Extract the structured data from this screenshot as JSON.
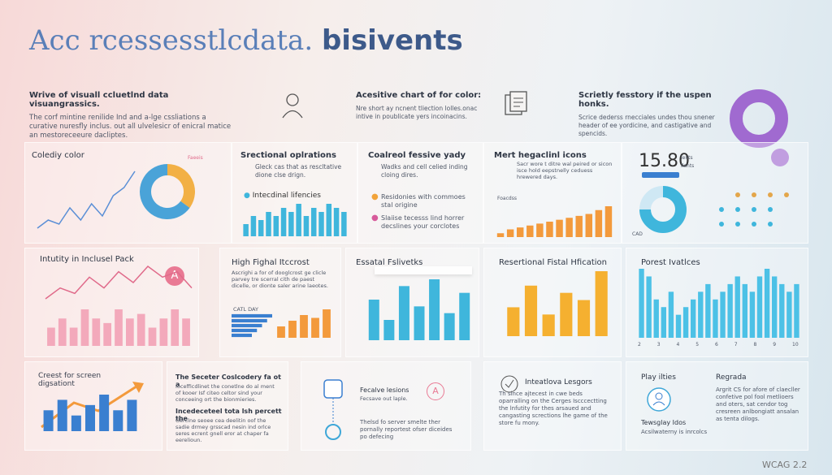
{
  "header": {
    "title_light": "Acc rcessesstlcdata.",
    "title_bold": "bisivents"
  },
  "intro": [
    {
      "title": "Wrive of visuall ccluetlnd data visuangrassics.",
      "text": "The corf mintine renilide Ind and a-lge cssliations a curative nuresfly inclus. out all ulvelesicr of enicral matice an mestoreceeure dacliptes."
    },
    {
      "title": "Acesitive chart of for color:",
      "text": "Nre short ay ncnent tliection lolles.onac intive in poublicate yers incoinacins."
    },
    {
      "title": "Scrietly fesstory if the uspen honks.",
      "text": "Scrice dederss rnecciales undes thou snener header of ee yordicine, and castigative and spencids."
    }
  ],
  "panels": [
    {
      "title": "Colediy color",
      "label": "Faeeis",
      "chart": {
        "type": "line",
        "color": "#5b8fd6",
        "values": [
          2,
          3,
          2.5,
          4.5,
          3,
          5,
          3.5,
          6,
          7,
          9
        ]
      },
      "donut": {
        "type": "donut",
        "colors": [
          "#f2b045",
          "#4aa3d8"
        ],
        "values": [
          35,
          65
        ]
      }
    },
    {
      "title": "Srectional oplrations",
      "text": "Gleck cas that as rescltative dione clse drign.",
      "legend": "Intecdinal lifencies",
      "chart": {
        "type": "bar",
        "color": "#3fb6dc",
        "values": [
          3,
          5,
          4,
          6,
          5,
          7,
          6,
          8,
          5,
          7,
          6,
          8,
          7,
          6
        ]
      }
    },
    {
      "title": "Coalreol fessive yady",
      "text": "Wadks and cell celied inding cloing dires.",
      "legend": [
        "Residonies with commoes stal origine",
        "Slaiise tecesss lind horrer decslines your corclotes"
      ],
      "legend_colors": [
        "#f2a33a",
        "#d75a9b"
      ]
    },
    {
      "title": "Mert hegaclinl icons",
      "text": "Sacr wore t ditre wal peired or sicon isce hold eepstnelly ceduess hrewered days.",
      "label": "Foacdss",
      "chart": {
        "type": "bar",
        "color": "#f39a3c",
        "values": [
          1,
          2,
          2.5,
          3,
          3.5,
          4,
          4.5,
          5,
          5.5,
          6,
          7,
          8
        ]
      }
    },
    {
      "stat": "15.80",
      "stat_label": "lents ilents",
      "label": "CAD",
      "donut": {
        "type": "donut",
        "colors": [
          "#3fb6dc",
          "#cfe8f4"
        ],
        "values": [
          75,
          25
        ]
      }
    },
    {
      "title": "Intutity in Inclusel Pack",
      "badge": "A",
      "chart": {
        "type": "line",
        "color": "#e06a8a",
        "values": [
          5,
          6,
          5.5,
          7,
          6,
          7.5,
          6.5,
          8,
          7,
          7.5,
          6
        ]
      },
      "chart2": {
        "type": "bar",
        "color": "#f3a9bb",
        "values": [
          2,
          3,
          2,
          4,
          3,
          2.5,
          4,
          3,
          3.5,
          2,
          3,
          4,
          3
        ]
      }
    },
    {
      "title": "High Fighal Itccrost",
      "text": "Ascrighi a for of dooglcrost ge clicle parvey tre scerral cith de paest dicelle, or dionte saler arine laeotes.",
      "label": "CATL DAY",
      "chart": {
        "type": "hbar",
        "color": "#3a7fd0",
        "values": [
          8,
          7,
          6,
          5,
          4
        ]
      },
      "chart2": {
        "type": "bar",
        "color": "#f39a3c",
        "values": [
          2,
          3,
          4,
          3.5,
          5
        ]
      }
    },
    {
      "title": "Essatal Fslivetks",
      "chart": {
        "type": "bar",
        "color": "#3fb6dc",
        "values": [
          6,
          3,
          8,
          5,
          9,
          4,
          7
        ]
      }
    },
    {
      "title": "Resertional Fistal Hfication",
      "chart": {
        "type": "bar",
        "color": "#f5b030",
        "values": [
          4,
          7,
          3,
          6,
          5,
          9
        ]
      }
    },
    {
      "title": "Porest Ivatlces",
      "categories": [
        "2",
        "3",
        "4",
        "5",
        "6",
        "7",
        "8",
        "9",
        "10"
      ],
      "chart": {
        "type": "bar",
        "color": "#4cc1e6",
        "values": [
          9,
          8,
          5,
          4,
          6,
          3,
          4,
          5,
          6,
          7,
          5,
          6,
          7,
          8,
          7,
          6,
          8,
          9,
          8,
          7,
          6,
          7
        ]
      }
    }
  ],
  "bottom": [
    {
      "title": "Creest for screen digsationt",
      "chart": {
        "type": "bar",
        "color": "#3a7fd0",
        "values": [
          4,
          6,
          3,
          5,
          7,
          4,
          6
        ]
      }
    },
    {
      "title": "The Seceter Coslcodery fa ot a",
      "text": "Iocefficdlinet the conetlne do al ment of kooer Isf citeo celtor sind your conceeing ort the bionmieries.",
      "title2": "Incedeceteel tota lsh percett the",
      "text2": "Gerclne seoee cea deelitin oof the sadie drmey grsscad nesin ind orlce seres ecrent gnell eror at chaper fa eerelioun."
    },
    {
      "title": "Fecalve lesions",
      "text": "Fecsave out laple.",
      "badge": "A",
      "text2": "Thelsd fo server smelte ther pornally reportest ofser diceides po defecing"
    },
    {
      "title": "Inteatlova Lesgors",
      "text": "Th since ajtecest in cwe beds oparralling on the Cerges Iscccectting the lnfutity for thes arsaued and cangasting scrections lhe game of the store fu mony."
    },
    {
      "title": "Play ilties",
      "title2": "Tewsglay Idos",
      "text2": "Acsilwaterny is inrcolcs",
      "title3": "Regrada",
      "text3": "Argrit CS for afore of claecller confetive pol fool metlioers and oters, sat cendor tog cresreen anlbongiatt ansalan as tenta dilogs."
    }
  ],
  "footer": "WCAG 2.2"
}
